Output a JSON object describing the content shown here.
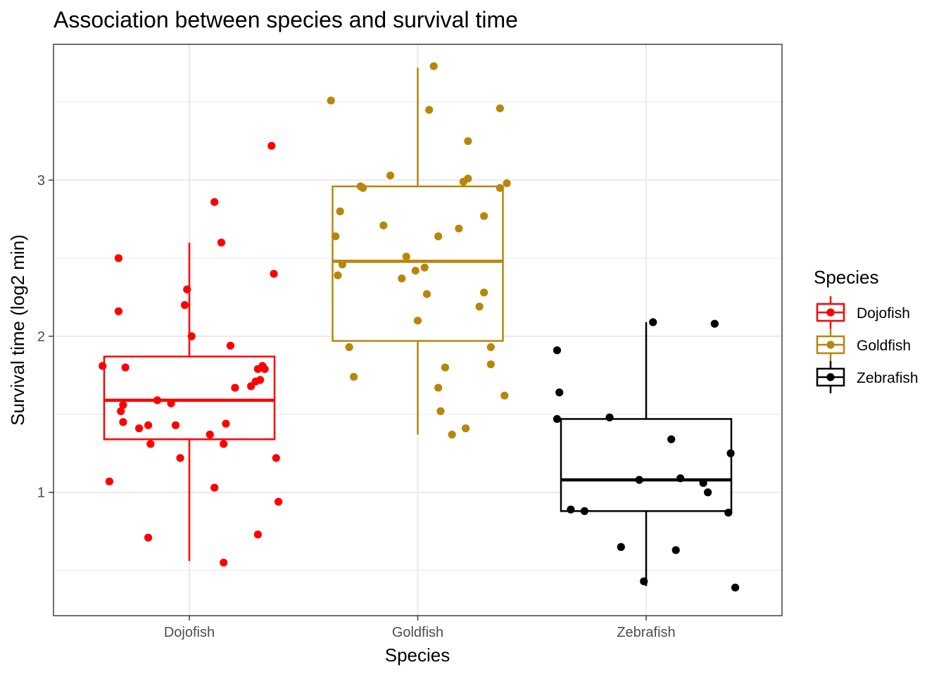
{
  "chart_data": {
    "type": "boxplot",
    "title": "Association between species and survival time",
    "xlabel": "Species",
    "ylabel": "Survival time (log2 min)",
    "categories": [
      "Dojofish",
      "Goldfish",
      "Zebrafish"
    ],
    "ylim": [
      0.21,
      3.87
    ],
    "yticks": [
      1,
      2,
      3
    ],
    "grid": true,
    "legend": {
      "title": "Species",
      "position": "right",
      "entries": [
        "Dojofish",
        "Goldfish",
        "Zebrafish"
      ]
    },
    "series": [
      {
        "name": "Dojofish",
        "color": "#ff0000",
        "box": {
          "min": 0.56,
          "q1": 1.34,
          "median": 1.59,
          "q3": 1.87,
          "max": 2.6
        },
        "points": [
          {
            "x": -0.38,
            "y": 1.81
          },
          {
            "x": -0.35,
            "y": 1.07
          },
          {
            "x": -0.31,
            "y": 2.5
          },
          {
            "x": -0.31,
            "y": 2.16
          },
          {
            "x": -0.3,
            "y": 1.52
          },
          {
            "x": -0.29,
            "y": 1.45
          },
          {
            "x": -0.29,
            "y": 1.56
          },
          {
            "x": -0.28,
            "y": 1.8
          },
          {
            "x": -0.22,
            "y": 1.41
          },
          {
            "x": -0.18,
            "y": 0.71
          },
          {
            "x": -0.18,
            "y": 1.43
          },
          {
            "x": -0.17,
            "y": 1.31
          },
          {
            "x": -0.14,
            "y": 1.59
          },
          {
            "x": -0.08,
            "y": 1.57
          },
          {
            "x": -0.06,
            "y": 1.43
          },
          {
            "x": -0.04,
            "y": 1.22
          },
          {
            "x": -0.02,
            "y": 2.2
          },
          {
            "x": -0.01,
            "y": 2.3
          },
          {
            "x": 0.01,
            "y": 2.0
          },
          {
            "x": 0.09,
            "y": 1.37
          },
          {
            "x": 0.11,
            "y": 2.86
          },
          {
            "x": 0.11,
            "y": 1.03
          },
          {
            "x": 0.14,
            "y": 2.6
          },
          {
            "x": 0.15,
            "y": 1.31
          },
          {
            "x": 0.15,
            "y": 0.55
          },
          {
            "x": 0.16,
            "y": 1.44
          },
          {
            "x": 0.18,
            "y": 1.94
          },
          {
            "x": 0.2,
            "y": 1.67
          },
          {
            "x": 0.27,
            "y": 1.68
          },
          {
            "x": 0.29,
            "y": 1.71
          },
          {
            "x": 0.3,
            "y": 1.79
          },
          {
            "x": 0.3,
            "y": 0.73
          },
          {
            "x": 0.31,
            "y": 1.72
          },
          {
            "x": 0.32,
            "y": 1.81
          },
          {
            "x": 0.33,
            "y": 1.79
          },
          {
            "x": 0.36,
            "y": 3.22
          },
          {
            "x": 0.37,
            "y": 2.4
          },
          {
            "x": 0.38,
            "y": 1.22
          },
          {
            "x": 0.39,
            "y": 0.94
          }
        ]
      },
      {
        "name": "Goldfish",
        "color": "#b8860b",
        "box": {
          "min": 1.37,
          "q1": 1.97,
          "median": 2.48,
          "q3": 2.96,
          "max": 3.72
        },
        "points": [
          {
            "x": -0.38,
            "y": 3.51
          },
          {
            "x": -0.36,
            "y": 2.64
          },
          {
            "x": -0.35,
            "y": 2.39
          },
          {
            "x": -0.34,
            "y": 2.8
          },
          {
            "x": -0.33,
            "y": 2.46
          },
          {
            "x": -0.3,
            "y": 1.93
          },
          {
            "x": -0.28,
            "y": 1.74
          },
          {
            "x": -0.25,
            "y": 2.96
          },
          {
            "x": -0.24,
            "y": 2.95
          },
          {
            "x": -0.15,
            "y": 2.71
          },
          {
            "x": -0.12,
            "y": 3.03
          },
          {
            "x": -0.07,
            "y": 2.37
          },
          {
            "x": -0.05,
            "y": 2.51
          },
          {
            "x": -0.01,
            "y": 2.42
          },
          {
            "x": 0.0,
            "y": 2.1
          },
          {
            "x": 0.03,
            "y": 2.44
          },
          {
            "x": 0.04,
            "y": 2.27
          },
          {
            "x": 0.05,
            "y": 3.45
          },
          {
            "x": 0.07,
            "y": 3.73
          },
          {
            "x": 0.09,
            "y": 1.67
          },
          {
            "x": 0.09,
            "y": 2.64
          },
          {
            "x": 0.1,
            "y": 1.52
          },
          {
            "x": 0.12,
            "y": 1.8
          },
          {
            "x": 0.15,
            "y": 1.37
          },
          {
            "x": 0.18,
            "y": 2.69
          },
          {
            "x": 0.2,
            "y": 2.99
          },
          {
            "x": 0.21,
            "y": 1.41
          },
          {
            "x": 0.22,
            "y": 3.01
          },
          {
            "x": 0.22,
            "y": 3.25
          },
          {
            "x": 0.27,
            "y": 2.19
          },
          {
            "x": 0.29,
            "y": 2.28
          },
          {
            "x": 0.29,
            "y": 2.77
          },
          {
            "x": 0.32,
            "y": 1.82
          },
          {
            "x": 0.32,
            "y": 1.93
          },
          {
            "x": 0.36,
            "y": 3.46
          },
          {
            "x": 0.36,
            "y": 2.95
          },
          {
            "x": 0.38,
            "y": 1.62
          },
          {
            "x": 0.39,
            "y": 2.98
          }
        ]
      },
      {
        "name": "Zebrafish",
        "color": "#000000",
        "box": {
          "min": 0.4,
          "q1": 0.88,
          "median": 1.08,
          "q3": 1.47,
          "max": 2.09
        },
        "points": [
          {
            "x": -0.39,
            "y": 1.91
          },
          {
            "x": -0.39,
            "y": 1.47
          },
          {
            "x": -0.38,
            "y": 1.64
          },
          {
            "x": -0.33,
            "y": 0.89
          },
          {
            "x": -0.27,
            "y": 0.88
          },
          {
            "x": -0.16,
            "y": 1.48
          },
          {
            "x": -0.11,
            "y": 0.65
          },
          {
            "x": -0.03,
            "y": 1.08
          },
          {
            "x": -0.01,
            "y": 0.43
          },
          {
            "x": 0.03,
            "y": 2.09
          },
          {
            "x": 0.11,
            "y": 1.34
          },
          {
            "x": 0.13,
            "y": 0.63
          },
          {
            "x": 0.15,
            "y": 1.09
          },
          {
            "x": 0.25,
            "y": 1.06
          },
          {
            "x": 0.27,
            "y": 1.0
          },
          {
            "x": 0.3,
            "y": 2.08
          },
          {
            "x": 0.36,
            "y": 0.87
          },
          {
            "x": 0.37,
            "y": 1.25
          },
          {
            "x": 0.39,
            "y": 0.39
          }
        ]
      }
    ]
  }
}
